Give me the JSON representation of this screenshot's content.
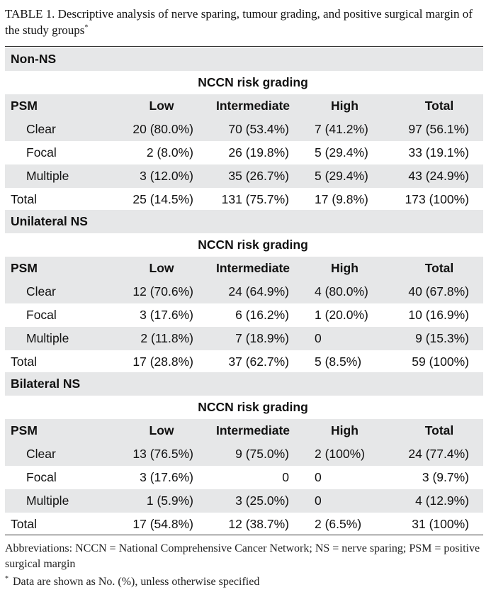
{
  "caption": {
    "text": "TABLE 1. Descriptive analysis of nerve sparing, tumour grading, and positive surgical margin of the study groups",
    "mark": "*"
  },
  "sections": [
    {
      "title": "Non-NS",
      "risk_label": "NCCN risk grading",
      "headers": [
        "PSM",
        "Low",
        "Intermediate",
        "High",
        "Total"
      ],
      "rows": [
        {
          "label": "Clear",
          "values": [
            "20 (80.0%)",
            "70 (53.4%)",
            "7 (41.2%)",
            "97 (56.1%)"
          ]
        },
        {
          "label": "Focal",
          "values": [
            "2 (8.0%)",
            "26 (19.8%)",
            "5 (29.4%)",
            "33 (19.1%)"
          ]
        },
        {
          "label": "Multiple",
          "values": [
            "3 (12.0%)",
            "35 (26.7%)",
            "5 (29.4%)",
            "43 (24.9%)"
          ]
        },
        {
          "label": "Total",
          "values": [
            "25 (14.5%)",
            "131 (75.7%)",
            "17 (9.8%)",
            "173 (100%)"
          ]
        }
      ]
    },
    {
      "title": "Unilateral NS",
      "risk_label": "NCCN risk grading",
      "headers": [
        "PSM",
        "Low",
        "Intermediate",
        "High",
        "Total"
      ],
      "rows": [
        {
          "label": "Clear",
          "values": [
            "12 (70.6%)",
            "24 (64.9%)",
            "4 (80.0%)",
            "40 (67.8%)"
          ]
        },
        {
          "label": "Focal",
          "values": [
            "3 (17.6%)",
            "6 (16.2%)",
            "1 (20.0%)",
            "10 (16.9%)"
          ]
        },
        {
          "label": "Multiple",
          "values": [
            "2 (11.8%)",
            "7 (18.9%)",
            "0",
            "9 (15.3%)"
          ]
        },
        {
          "label": "Total",
          "values": [
            "17 (28.8%)",
            "37 (62.7%)",
            "5 (8.5%)",
            "59 (100%)"
          ]
        }
      ]
    },
    {
      "title": "Bilateral NS",
      "risk_label": "NCCN risk grading",
      "headers": [
        "PSM",
        "Low",
        "Intermediate",
        "High",
        "Total"
      ],
      "rows": [
        {
          "label": "Clear",
          "values": [
            "13 (76.5%)",
            "9 (75.0%)",
            "2 (100%)",
            "24 (77.4%)"
          ]
        },
        {
          "label": "Focal",
          "values": [
            "3 (17.6%)",
            "0",
            "0",
            "3 (9.7%)"
          ]
        },
        {
          "label": "Multiple",
          "values": [
            "1 (5.9%)",
            "3 (25.0%)",
            "0",
            "4 (12.9%)"
          ]
        },
        {
          "label": "Total",
          "values": [
            "17 (54.8%)",
            "12 (38.7%)",
            "2 (6.5%)",
            "31 (100%)"
          ]
        }
      ]
    }
  ],
  "footnotes": {
    "abbreviations": "Abbreviations: NCCN = National Comprehensive Cancer Network; NS = nerve sparing; PSM = positive surgical margin",
    "note_mark": "*",
    "note": "Data are shown as No. (%), unless otherwise specified"
  }
}
